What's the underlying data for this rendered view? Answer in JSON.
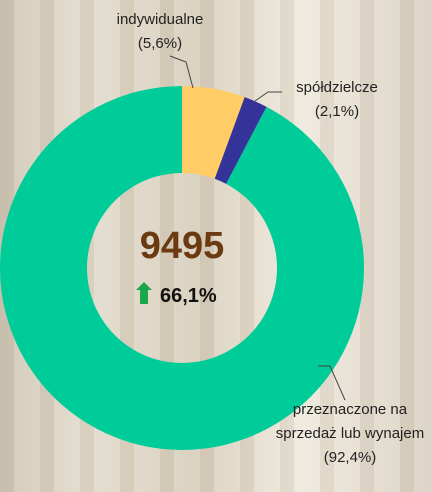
{
  "chart_data": {
    "type": "donut",
    "categories": [
      "indywidualne",
      "spółdzielcze",
      "przeznaczone na sprzedaż lub wynajem"
    ],
    "values": [
      5.6,
      2.1,
      92.4
    ],
    "value_labels": [
      "(5,6%)",
      "(2,1%)",
      "(92,4%)"
    ],
    "colors": [
      "#ffcc66",
      "#333399",
      "#00cc99"
    ],
    "center_value": 9495,
    "change_label": "66,1%"
  }
}
